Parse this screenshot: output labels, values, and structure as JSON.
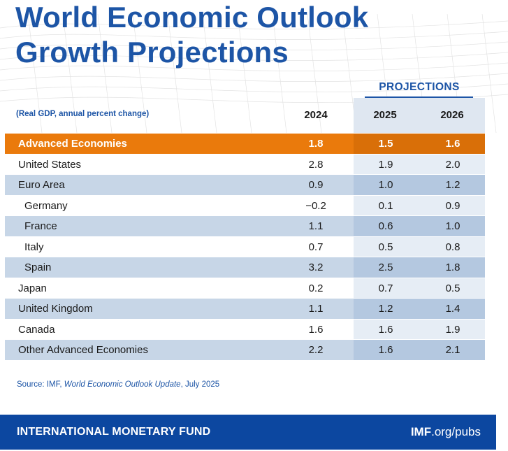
{
  "title": {
    "line1": "World Economic Outlook",
    "line2": "Growth Projections"
  },
  "chart_data": {
    "type": "table",
    "title": "World Economic Outlook Growth Projections",
    "projections_label": "PROJECTIONS",
    "units_note": "(Real GDP, annual percent change)",
    "columns": [
      "2024",
      "2025",
      "2026"
    ],
    "rows": [
      {
        "label": "Advanced Economies",
        "values": [
          "1.8",
          "1.5",
          "1.6"
        ]
      },
      {
        "label": "United States",
        "values": [
          "2.8",
          "1.9",
          "2.0"
        ]
      },
      {
        "label": "Euro Area",
        "values": [
          "0.9",
          "1.0",
          "1.2"
        ]
      },
      {
        "label": "Germany",
        "values": [
          "−0.2",
          "0.1",
          "0.9"
        ]
      },
      {
        "label": "France",
        "values": [
          "1.1",
          "0.6",
          "1.0"
        ]
      },
      {
        "label": "Italy",
        "values": [
          "0.7",
          "0.5",
          "0.8"
        ]
      },
      {
        "label": "Spain",
        "values": [
          "3.2",
          "2.5",
          "1.8"
        ]
      },
      {
        "label": "Japan",
        "values": [
          "0.2",
          "0.7",
          "0.5"
        ]
      },
      {
        "label": "United Kingdom",
        "values": [
          "1.1",
          "1.2",
          "1.4"
        ]
      },
      {
        "label": "Canada",
        "values": [
          "1.6",
          "1.6",
          "1.9"
        ]
      },
      {
        "label": "Other Advanced Economies",
        "values": [
          "2.2",
          "1.6",
          "2.1"
        ]
      }
    ]
  },
  "source": {
    "prefix": "Source: IMF, ",
    "publication": "World Economic Outlook Update",
    "suffix": ", July 2025"
  },
  "footer": {
    "org_name": "INTERNATIONAL MONETARY FUND",
    "link_bold": "IMF",
    "link_mid": ".org/",
    "link_end": "pubs"
  },
  "colors": {
    "brand_blue": "#1d55a6",
    "highlight_orange": "#ea7a0c",
    "footer_blue": "#0c47a0"
  }
}
